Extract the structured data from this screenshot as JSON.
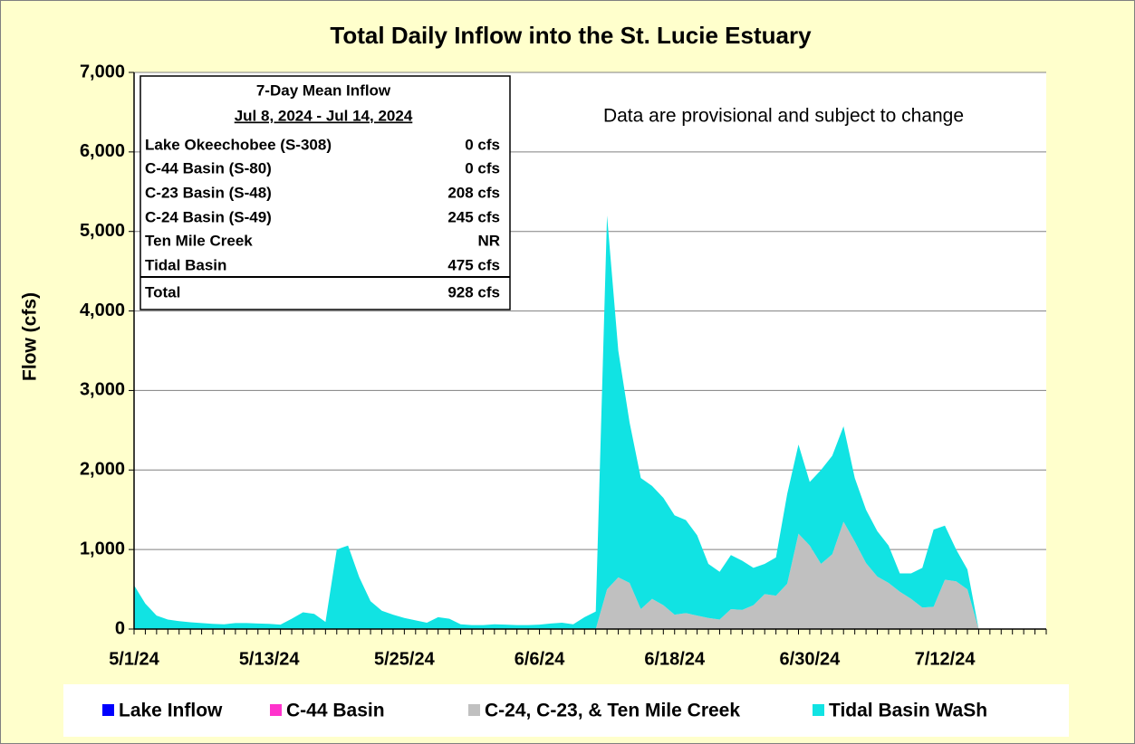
{
  "chart_data": {
    "type": "area",
    "stacked": true,
    "title": "Total Daily Inflow into the St. Lucie Estuary",
    "ylabel": "Flow (cfs)",
    "annotation": "Data are provisional and subject to change",
    "categories": [
      "5/1/24",
      null,
      null,
      null,
      null,
      null,
      null,
      null,
      null,
      null,
      null,
      null,
      "5/13/24",
      null,
      null,
      null,
      null,
      null,
      null,
      null,
      null,
      null,
      null,
      null,
      "5/25/24",
      null,
      null,
      null,
      null,
      null,
      null,
      null,
      null,
      null,
      null,
      null,
      "6/6/24",
      null,
      null,
      null,
      null,
      null,
      null,
      null,
      null,
      null,
      null,
      null,
      "6/18/24",
      null,
      null,
      null,
      null,
      null,
      null,
      null,
      null,
      null,
      null,
      null,
      "6/30/24",
      null,
      null,
      null,
      null,
      null,
      null,
      null,
      null,
      null,
      null,
      null,
      "7/12/24",
      null,
      null,
      null,
      null,
      null,
      null,
      null,
      null,
      null
    ],
    "ylim": [
      0,
      7000
    ],
    "yticks": [
      0,
      {
        "value": 1000,
        "label": "1,000"
      },
      {
        "value": 2000,
        "label": "2,000"
      },
      {
        "value": 3000,
        "label": "3,000"
      },
      {
        "value": 4000,
        "label": "4,000"
      },
      {
        "value": 5000,
        "label": "5,000"
      },
      {
        "value": 6000,
        "label": "6,000"
      },
      {
        "value": 7000,
        "label": "7,000"
      }
    ],
    "grid": true,
    "legend": "bottom",
    "series": [
      {
        "name": "Lake Inflow",
        "color": "#0000ff",
        "values": [
          0,
          0,
          0,
          0,
          0,
          0,
          0,
          0,
          0,
          0,
          0,
          0,
          0,
          0,
          0,
          0,
          0,
          0,
          0,
          0,
          0,
          0,
          0,
          0,
          0,
          0,
          0,
          0,
          0,
          0,
          0,
          0,
          0,
          0,
          0,
          0,
          0,
          0,
          0,
          0,
          0,
          0,
          0,
          0,
          0,
          0,
          0,
          0,
          0,
          0,
          0,
          0,
          0,
          0,
          0,
          0,
          0,
          0,
          0,
          0,
          0,
          0,
          0,
          0,
          0,
          0,
          0,
          0,
          0,
          0,
          0,
          0,
          0,
          0,
          0,
          0,
          0,
          0,
          0,
          0,
          0,
          0
        ]
      },
      {
        "name": "C-44 Basin",
        "color": "#ff33cc",
        "values": [
          0,
          0,
          0,
          0,
          0,
          0,
          0,
          0,
          0,
          0,
          0,
          0,
          0,
          0,
          0,
          0,
          0,
          0,
          0,
          0,
          0,
          0,
          0,
          0,
          0,
          0,
          0,
          0,
          0,
          0,
          0,
          0,
          0,
          0,
          0,
          0,
          0,
          0,
          0,
          0,
          0,
          0,
          0,
          0,
          0,
          0,
          0,
          0,
          0,
          0,
          0,
          0,
          0,
          0,
          0,
          0,
          0,
          0,
          0,
          0,
          0,
          0,
          0,
          0,
          0,
          0,
          0,
          0,
          0,
          0,
          0,
          0,
          0,
          0,
          0,
          0,
          0,
          0,
          0,
          0,
          0,
          0
        ]
      },
      {
        "name": "C-24, C-23, & Ten Mile Creek",
        "color": "#c0c0c0",
        "values": [
          0,
          0,
          0,
          0,
          0,
          0,
          0,
          0,
          0,
          0,
          0,
          0,
          0,
          0,
          0,
          0,
          0,
          0,
          0,
          0,
          0,
          0,
          0,
          0,
          0,
          0,
          0,
          0,
          0,
          0,
          0,
          0,
          0,
          0,
          0,
          0,
          0,
          0,
          0,
          0,
          0,
          0,
          500,
          650,
          580,
          250,
          380,
          300,
          180,
          200,
          170,
          140,
          120,
          250,
          240,
          300,
          440,
          420,
          570,
          1200,
          1050,
          820,
          940,
          1350,
          1100,
          830,
          660,
          580,
          470,
          380,
          270,
          280,
          620,
          600,
          500,
          0,
          0,
          0,
          0,
          0,
          0,
          0
        ]
      },
      {
        "name": "Tidal Basin WaSh",
        "color": "#11e3e3",
        "values": [
          550,
          320,
          170,
          120,
          100,
          85,
          75,
          65,
          60,
          75,
          75,
          70,
          65,
          55,
          130,
          210,
          190,
          90,
          1000,
          1050,
          650,
          350,
          230,
          180,
          140,
          110,
          80,
          150,
          130,
          60,
          50,
          50,
          60,
          55,
          50,
          50,
          55,
          70,
          80,
          60,
          150,
          220,
          4700,
          2850,
          2020,
          1650,
          1420,
          1350,
          1250,
          1170,
          1010,
          680,
          600,
          680,
          620,
          470,
          380,
          480,
          1130,
          1120,
          800,
          1180,
          1240,
          1200,
          800,
          670,
          570,
          470,
          230,
          320,
          500,
          970,
          680,
          400,
          250,
          0,
          0,
          0,
          0,
          0,
          0,
          0
        ]
      }
    ],
    "inset_table": {
      "title": "7-Day Mean Inflow",
      "period": "Jul 8, 2024 - Jul 14, 2024",
      "rows": [
        [
          "Lake Okeechobee (S-308)",
          "0 cfs"
        ],
        [
          "C-44 Basin (S-80)",
          "0 cfs"
        ],
        [
          "C-23 Basin (S-48)",
          "208 cfs"
        ],
        [
          "C-24 Basin (S-49)",
          "245 cfs"
        ],
        [
          "Ten Mile Creek",
          "NR"
        ],
        [
          "Tidal Basin",
          "475 cfs"
        ]
      ],
      "total": [
        "Total",
        "928 cfs"
      ]
    }
  }
}
